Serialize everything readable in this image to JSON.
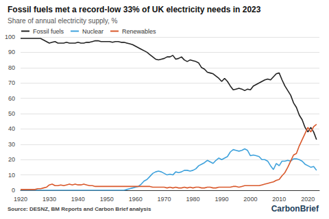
{
  "chart_data": {
    "type": "line",
    "title": "Fossil fuels met a record-low 33% of UK electricity needs in 2023",
    "subtitle": "Share of annual electricity supply, %",
    "source": "Source: DESNZ, BM Reports and Carbon Brief analysis",
    "logo": "CarbonBrief",
    "legend": "top-left",
    "grid": true,
    "xlim": [
      1920,
      2024
    ],
    "xticks": [
      1920,
      1930,
      1940,
      1950,
      1960,
      1970,
      1980,
      1990,
      2000,
      2010,
      2020
    ],
    "ylim": [
      0,
      100
    ],
    "yticks": [
      0,
      10,
      20,
      30,
      40,
      50,
      60,
      70,
      80,
      90,
      100
    ],
    "x": [
      1920,
      1921,
      1922,
      1923,
      1924,
      1925,
      1926,
      1927,
      1928,
      1929,
      1930,
      1931,
      1932,
      1933,
      1934,
      1935,
      1936,
      1937,
      1938,
      1939,
      1940,
      1941,
      1942,
      1943,
      1944,
      1945,
      1946,
      1947,
      1948,
      1949,
      1950,
      1951,
      1952,
      1953,
      1954,
      1955,
      1956,
      1957,
      1958,
      1959,
      1960,
      1961,
      1962,
      1963,
      1964,
      1965,
      1966,
      1967,
      1968,
      1969,
      1970,
      1971,
      1972,
      1973,
      1974,
      1975,
      1976,
      1977,
      1978,
      1979,
      1980,
      1981,
      1982,
      1983,
      1984,
      1985,
      1986,
      1987,
      1988,
      1989,
      1990,
      1991,
      1992,
      1993,
      1994,
      1995,
      1996,
      1997,
      1998,
      1999,
      2000,
      2001,
      2002,
      2003,
      2004,
      2005,
      2006,
      2007,
      2008,
      2009,
      2010,
      2011,
      2012,
      2013,
      2014,
      2015,
      2016,
      2017,
      2018,
      2019,
      2020,
      2021,
      2022,
      2023
    ],
    "series": [
      {
        "name": "Fossil fuels",
        "color": "#222222",
        "values": [
          99,
          99,
          99,
          99,
          99,
          99,
          99,
          99,
          98,
          97,
          96,
          96.5,
          97,
          96,
          96,
          96,
          96.5,
          96,
          96,
          96,
          96.5,
          96,
          96,
          96.5,
          96.5,
          97,
          97.5,
          97.5,
          97,
          97,
          97,
          97,
          96.5,
          97,
          97,
          96.5,
          96.5,
          96,
          95.5,
          95,
          94,
          93,
          92,
          91,
          90,
          88.5,
          87,
          85.5,
          85,
          85.5,
          86,
          87,
          87,
          88,
          85.5,
          86,
          87,
          85,
          84,
          85,
          84.5,
          84,
          83,
          80,
          79,
          77,
          76.5,
          76,
          74.5,
          73,
          71,
          73,
          71,
          68,
          65.5,
          66,
          66.5,
          66,
          65,
          66,
          65.5,
          68,
          69,
          70,
          71,
          72,
          72.5,
          72,
          74,
          76,
          76.5,
          72,
          68,
          65,
          62,
          57,
          54,
          49,
          46,
          41,
          38,
          41,
          38,
          33
        ]
      },
      {
        "name": "Nuclear",
        "color": "#3fa2dc",
        "values": [
          0,
          0,
          0,
          0,
          0,
          0,
          0,
          0,
          0,
          0,
          0,
          0,
          0,
          0,
          0,
          0,
          0,
          0,
          0,
          0,
          0,
          0,
          0,
          0,
          0,
          0,
          0,
          0,
          0,
          0,
          0,
          0,
          0,
          0,
          0,
          0,
          0,
          0.5,
          1,
          1.5,
          2,
          2.5,
          4,
          6,
          7,
          9,
          11,
          12,
          12.5,
          12,
          11,
          10,
          10.5,
          10,
          12,
          11.5,
          12,
          13,
          13,
          12.5,
          13,
          14,
          16,
          17,
          18,
          19.5,
          18.5,
          17.5,
          19.5,
          21,
          20,
          21,
          22,
          25,
          26.5,
          26,
          25.5,
          26,
          27,
          26,
          22.5,
          23,
          22.5,
          22,
          20,
          20,
          19,
          16,
          13.5,
          17.5,
          16,
          19,
          19,
          19.5,
          19,
          20.5,
          20.5,
          20,
          19,
          17,
          16,
          15,
          15.5,
          13
        ]
      },
      {
        "name": "Renewables",
        "color": "#d9582b",
        "values": [
          0.5,
          0.5,
          0.5,
          0.5,
          0.5,
          0.5,
          1,
          1,
          1.5,
          2,
          3.5,
          4,
          3,
          3,
          3.5,
          3,
          3.5,
          4,
          3.5,
          4,
          3.5,
          3.5,
          4,
          3.5,
          3,
          3,
          2.5,
          2.5,
          2.5,
          2.5,
          2.5,
          2.5,
          2.5,
          2.5,
          2.5,
          2.5,
          2.5,
          2.5,
          2.5,
          2.5,
          2.5,
          2.5,
          2.5,
          2.5,
          2.5,
          2.5,
          2,
          2,
          2,
          2,
          2,
          1.5,
          2,
          1.5,
          2,
          1.5,
          1.5,
          2,
          1.5,
          2,
          1.5,
          2,
          2,
          1.5,
          1.5,
          2,
          2,
          1.5,
          1.5,
          2,
          2,
          2,
          2,
          2,
          2.5,
          2.5,
          2,
          2.5,
          3,
          3,
          3,
          3,
          3,
          3,
          3.5,
          4,
          4.5,
          5,
          5.5,
          6.5,
          7,
          9.5,
          11.5,
          15,
          19,
          23,
          24,
          29,
          33,
          37,
          41,
          38,
          41.5,
          43
        ]
      }
    ]
  }
}
